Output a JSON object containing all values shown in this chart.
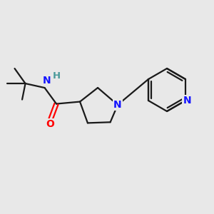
{
  "background_color": "#e8e8e8",
  "bond_color": "#1a1a1a",
  "nitrogen_color": "#1414ff",
  "oxygen_color": "#ff0000",
  "hydrogen_color": "#4a9a9a",
  "line_width": 1.6,
  "figsize": [
    3.0,
    3.0
  ],
  "dpi": 100,
  "xlim": [
    0,
    10
  ],
  "ylim": [
    0,
    10
  ]
}
